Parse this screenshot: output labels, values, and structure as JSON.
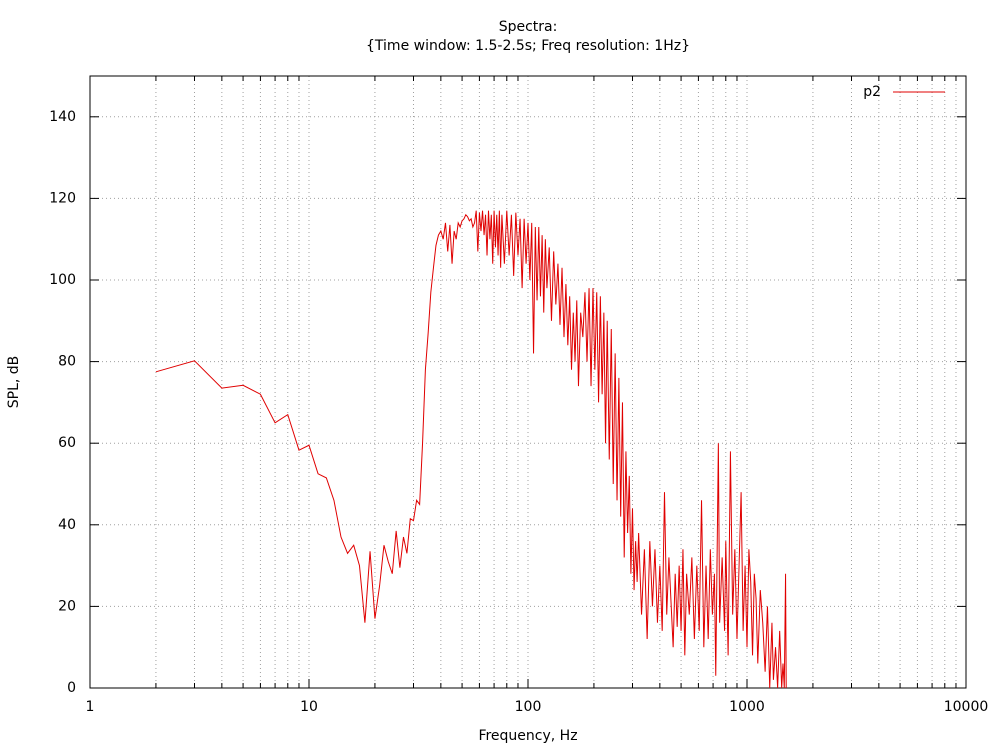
{
  "chart_data": {
    "type": "line",
    "title": "Spectra:",
    "subtitle": "{Time window: 1.5-2.5s; Freq resolution: 1Hz}",
    "xlabel": "Frequency, Hz",
    "ylabel": "SPL, dB",
    "xscale": "log",
    "xlim": [
      1,
      10000
    ],
    "xticks": [
      1,
      10,
      100,
      1000,
      10000
    ],
    "ylim": [
      0,
      150
    ],
    "yticks": [
      0,
      20,
      40,
      60,
      80,
      100,
      120,
      140
    ],
    "grid": true,
    "minor_grid": true,
    "legend": "top-right",
    "x": [
      2,
      3,
      4,
      5,
      6,
      7,
      8,
      9,
      10,
      11,
      12,
      13,
      14,
      15,
      16,
      17,
      18,
      19,
      20,
      21,
      22,
      23,
      24,
      25,
      26,
      27,
      28,
      29,
      30,
      31,
      32,
      33,
      34,
      35,
      36,
      37,
      38,
      39,
      40,
      41,
      42,
      43,
      44,
      45,
      46,
      47,
      48,
      49,
      50,
      51,
      52,
      53,
      54,
      55,
      56,
      57,
      58,
      59,
      60,
      61,
      62,
      63,
      64,
      65,
      66,
      67,
      68,
      69,
      70,
      71,
      72,
      73,
      74,
      75,
      76,
      78,
      80,
      82,
      84,
      86,
      88,
      90,
      92,
      94,
      96,
      98,
      100,
      102,
      104,
      106,
      108,
      110,
      112,
      114,
      116,
      118,
      120,
      122,
      125,
      128,
      131,
      134,
      137,
      140,
      143,
      146,
      149,
      152,
      155,
      158,
      161,
      164,
      167,
      170,
      174,
      178,
      182,
      186,
      190,
      194,
      198,
      202,
      206,
      210,
      214,
      218,
      222,
      226,
      230,
      235,
      240,
      245,
      250,
      255,
      260,
      265,
      270,
      275,
      280,
      285,
      290,
      295,
      300,
      305,
      310,
      315,
      320,
      330,
      340,
      350,
      360,
      370,
      380,
      390,
      400,
      410,
      420,
      430,
      440,
      460,
      470,
      480,
      490,
      500,
      510,
      520,
      530,
      545,
      560,
      575,
      590,
      605,
      620,
      635,
      650,
      665,
      680,
      695,
      710,
      720,
      740,
      750,
      770,
      790,
      800,
      820,
      840,
      860,
      880,
      900,
      920,
      940,
      960,
      980,
      1000,
      1020,
      1040,
      1060,
      1080,
      1100,
      1120,
      1150,
      1180,
      1210,
      1240,
      1270,
      1300,
      1320,
      1350,
      1380,
      1410,
      1440,
      1460,
      1480,
      1500,
      1510
    ],
    "series": [
      {
        "name": "p2",
        "color": "#e00000",
        "values": [
          77.5,
          80.2,
          73.5,
          74.2,
          72,
          65,
          67,
          58.3,
          59.5,
          52.5,
          51.5,
          46,
          37,
          33,
          35,
          30,
          16,
          33.5,
          17,
          25,
          35,
          31,
          28,
          38.5,
          29.5,
          37,
          33,
          41.5,
          41,
          46,
          45,
          60,
          78,
          87,
          97,
          103,
          108.5,
          111,
          112,
          110,
          114,
          107,
          113.5,
          104,
          112,
          110,
          114,
          113,
          114.5,
          115,
          116,
          115.5,
          114.5,
          115,
          113,
          114,
          117,
          107,
          116.5,
          112,
          117,
          111,
          116,
          106,
          117,
          110,
          116,
          104,
          117,
          108,
          116,
          106,
          117,
          103,
          116,
          104,
          117,
          106,
          116,
          101,
          116.5,
          106,
          115,
          98,
          115,
          104,
          114,
          100,
          114,
          82,
          113,
          95,
          113,
          96,
          111,
          92,
          110,
          98,
          108,
          90,
          107,
          94,
          104,
          89,
          103,
          86,
          99,
          84,
          96,
          78,
          92,
          80,
          95,
          74,
          92,
          86,
          97,
          80,
          98,
          74,
          98,
          78,
          97,
          70,
          96,
          72,
          92,
          60,
          90,
          56,
          88,
          50,
          82,
          46,
          76,
          42,
          70,
          32,
          58,
          38,
          52,
          28,
          44,
          24,
          36,
          26,
          38,
          18,
          34,
          12,
          36,
          20,
          34,
          16,
          30,
          14,
          48,
          18,
          32,
          10,
          28,
          15,
          30,
          14,
          34,
          8,
          28,
          18,
          32,
          12,
          30,
          14,
          46,
          10,
          30,
          12,
          34,
          18,
          28,
          3,
          60,
          16,
          32,
          14,
          36,
          8,
          58,
          18,
          34,
          12,
          30,
          48,
          14,
          30,
          10,
          34,
          26,
          8,
          28,
          22,
          6,
          24,
          16,
          4,
          20,
          0,
          16,
          2,
          10,
          0,
          14,
          0,
          6,
          0,
          28,
          0
        ]
      }
    ]
  }
}
